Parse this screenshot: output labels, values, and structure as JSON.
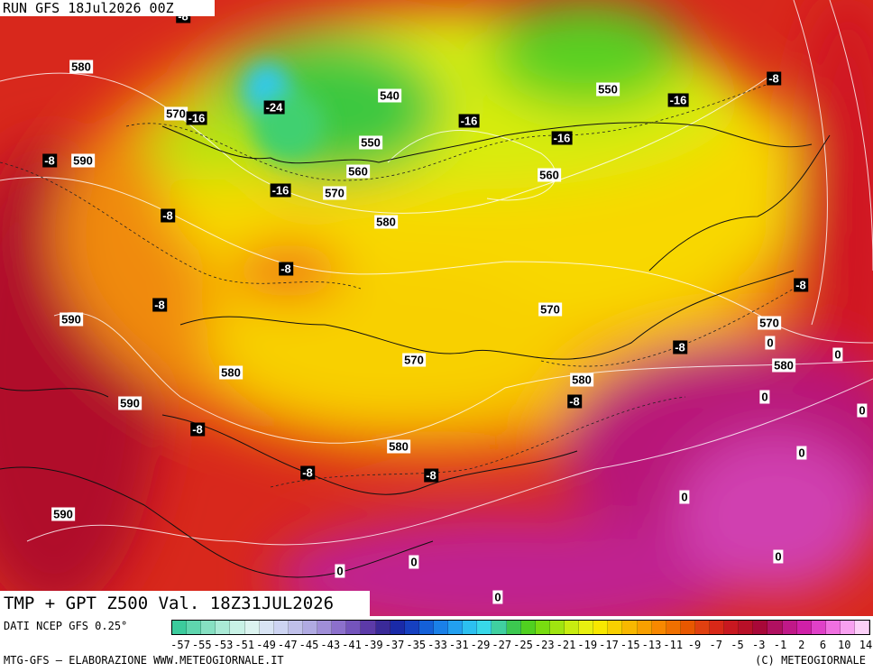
{
  "map": {
    "header": "RUN GFS 18Jul2026 00Z",
    "labels": [
      "-8",
      "580",
      "-8",
      "540",
      "550",
      "-16",
      "570",
      "-16",
      "-24",
      "-16",
      "-16",
      "550",
      "-8",
      "590",
      "560",
      "560",
      "-16",
      "570",
      "-8",
      "580",
      "-8",
      "-8",
      "-8",
      "570",
      "590",
      "570",
      "0",
      "-8",
      "0",
      "570",
      "580",
      "580",
      "580",
      "-8",
      "0",
      "590",
      "0",
      "-8",
      "580",
      "0",
      "-8",
      "-8",
      "0",
      "590",
      "0",
      "0",
      "0",
      "0"
    ],
    "title": "TMP + GPT Z500 Val. 18Z31JUL2026"
  },
  "legend": {
    "source": "DATI NCEP GFS 0.25°",
    "scale": [
      "-57",
      "-55",
      "-53",
      "-51",
      "-49",
      "-47",
      "-45",
      "-43",
      "-41",
      "-39",
      "-37",
      "-35",
      "-33",
      "-31",
      "-29",
      "-27",
      "-25",
      "-23",
      "-21",
      "-19",
      "-17",
      "-15",
      "-13",
      "-11",
      "-9",
      "-7",
      "-5",
      "-3",
      "-1",
      "2",
      "6",
      "10",
      "14"
    ],
    "colors": [
      "#3ccb9c",
      "#5fd6ae",
      "#86e0c2",
      "#aaead6",
      "#c8f2e6",
      "#dcf4f0",
      "#d8e4f4",
      "#cdd4f2",
      "#c0c0ea",
      "#b0aae2",
      "#a08ed8",
      "#8c70cc",
      "#7454bc",
      "#5c3aa8",
      "#3a2a98",
      "#1a2aa8",
      "#1640c0",
      "#1460d8",
      "#1a80e8",
      "#22a0f0",
      "#2cc0f0",
      "#38d8e8",
      "#40d0a0",
      "#3cc850",
      "#50d020",
      "#78dc10",
      "#a0e410",
      "#c8ec10",
      "#e8f010",
      "#f8e800",
      "#f8d000",
      "#f8b800",
      "#f8a000",
      "#f88800",
      "#f07000",
      "#e85800",
      "#e04010",
      "#d82818",
      "#c81820",
      "#b81028",
      "#a80838",
      "#b01060",
      "#c01888",
      "#d020a8",
      "#e040c8",
      "#f070e0",
      "#f8a0f0",
      "#fcd0f8"
    ]
  },
  "credits": {
    "left": "MTG-GFS — ELABORAZIONE WWW.METEOGIORNALE.IT",
    "right": "(C) METEOGIORNALE"
  }
}
